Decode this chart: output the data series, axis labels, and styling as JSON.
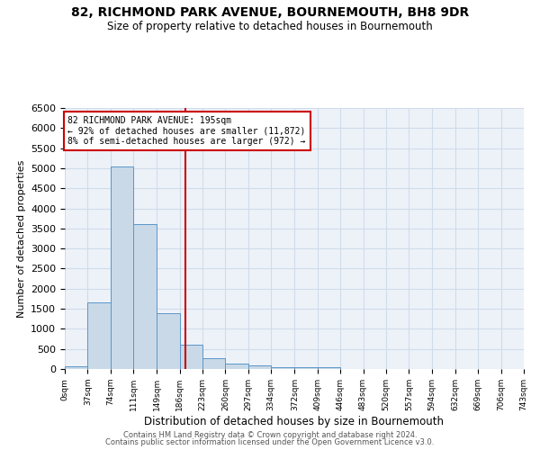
{
  "title_line1": "82, RICHMOND PARK AVENUE, BOURNEMOUTH, BH8 9DR",
  "title_line2": "Size of property relative to detached houses in Bournemouth",
  "xlabel": "Distribution of detached houses by size in Bournemouth",
  "ylabel": "Number of detached properties",
  "annotation_line1": "82 RICHMOND PARK AVENUE: 195sqm",
  "annotation_line2": "← 92% of detached houses are smaller (11,872)",
  "annotation_line3": "8% of semi-detached houses are larger (972) →",
  "property_size": 195,
  "bar_color": "#c9d9e8",
  "bar_edge_color": "#5a96c8",
  "vline_color": "#cc0000",
  "annotation_box_color": "#cc0000",
  "grid_color": "#d0dcea",
  "background_color": "#edf2f9",
  "bin_edges": [
    0,
    37,
    74,
    111,
    149,
    186,
    223,
    260,
    297,
    334,
    372,
    409,
    446,
    483,
    520,
    557,
    594,
    632,
    669,
    706,
    743
  ],
  "bin_counts": [
    75,
    1650,
    5050,
    3600,
    1400,
    600,
    280,
    140,
    80,
    55,
    50,
    50,
    10,
    5,
    5,
    5,
    5,
    5,
    5,
    5
  ],
  "ylim": [
    0,
    6500
  ],
  "footer_line1": "Contains HM Land Registry data © Crown copyright and database right 2024.",
  "footer_line2": "Contains public sector information licensed under the Open Government Licence v3.0.",
  "tick_labels": [
    "0sqm",
    "37sqm",
    "74sqm",
    "111sqm",
    "149sqm",
    "186sqm",
    "223sqm",
    "260sqm",
    "297sqm",
    "334sqm",
    "372sqm",
    "409sqm",
    "446sqm",
    "483sqm",
    "520sqm",
    "557sqm",
    "594sqm",
    "632sqm",
    "669sqm",
    "706sqm",
    "743sqm"
  ],
  "yticks": [
    0,
    500,
    1000,
    1500,
    2000,
    2500,
    3000,
    3500,
    4000,
    4500,
    5000,
    5500,
    6000,
    6500
  ]
}
